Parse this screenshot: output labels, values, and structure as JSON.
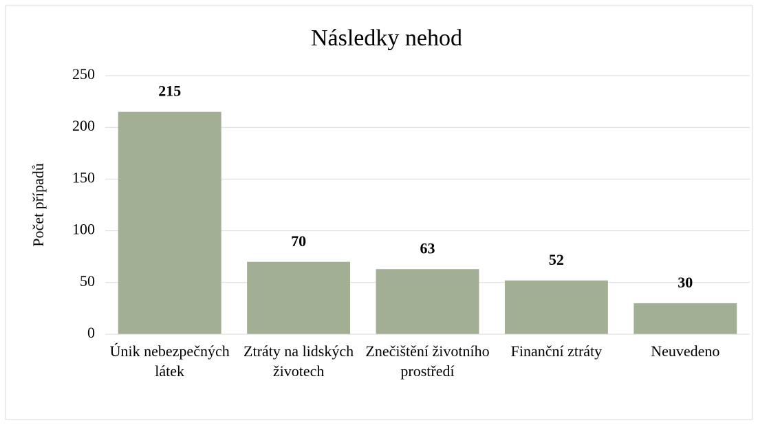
{
  "chart_data": {
    "type": "bar",
    "title": "Následky nehod",
    "y_label": "Počet případů",
    "categories": [
      "Únik nebezpečných látek",
      "Ztráty na lidských životech",
      "Znečištění životního prostředí",
      "Finanční ztráty",
      "Neuvedeno"
    ],
    "values": [
      215,
      70,
      63,
      52,
      30
    ],
    "color": "#a2af94",
    "ylim": [
      0,
      250
    ],
    "yticks": [
      0,
      50,
      100,
      150,
      200,
      250
    ],
    "grid": true
  }
}
